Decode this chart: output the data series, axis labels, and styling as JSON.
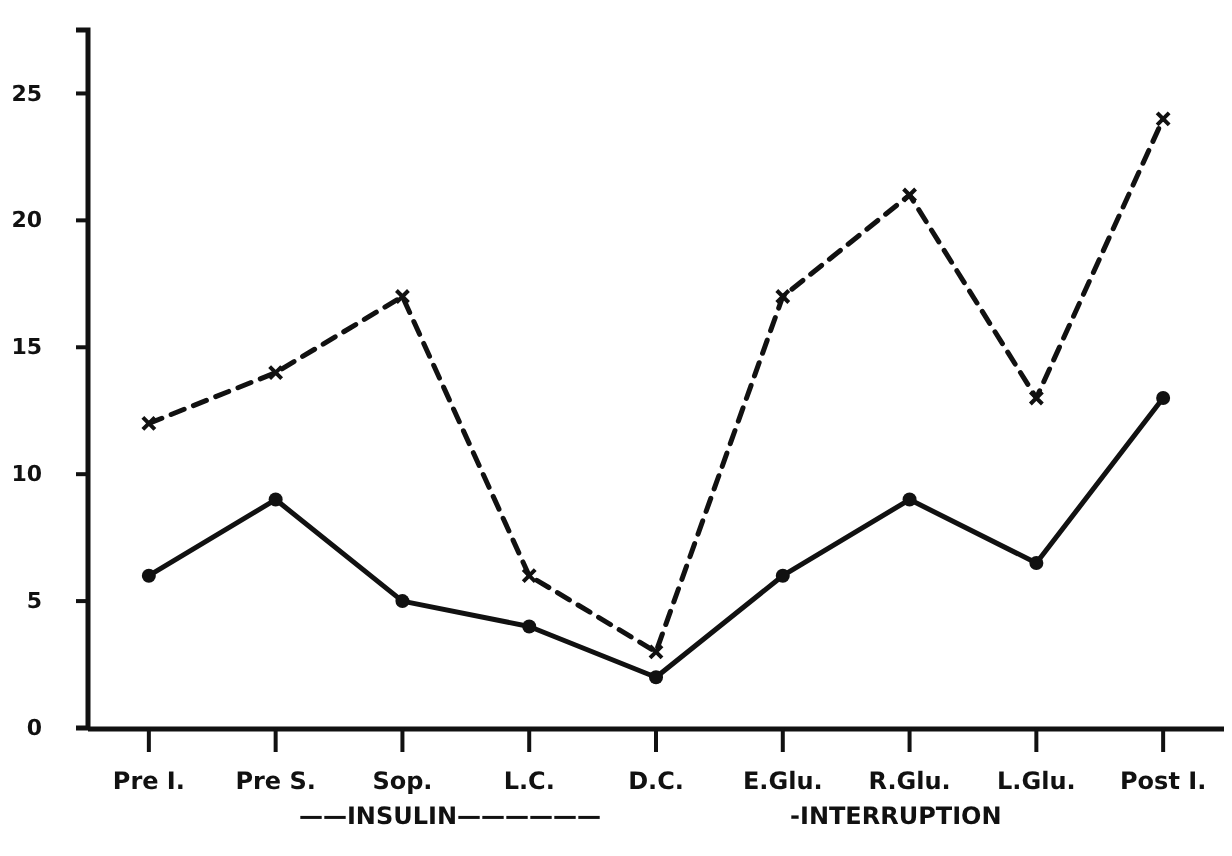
{
  "chart_data": {
    "type": "line",
    "categories": [
      "Pre I.",
      "Pre S.",
      "Sop.",
      "L.C.",
      "D.C.",
      "E.Glu.",
      "R.Glu.",
      "L.Glu.",
      "Post I."
    ],
    "series": [
      {
        "color": "#111111",
        "values": [
          12,
          14,
          17,
          6,
          3,
          17,
          21,
          13,
          24
        ],
        "marker": "cross",
        "line_style": "dashed"
      },
      {
        "color": "#111111",
        "values": [
          6,
          9,
          5,
          4,
          2,
          6,
          9,
          6.5,
          13
        ],
        "marker": "circle",
        "line_style": "solid"
      }
    ],
    "ylim": [
      0,
      27.5
    ],
    "yticks": [
      0,
      5,
      10,
      15,
      20,
      25
    ],
    "annotations": [
      "——INSULIN——————",
      "-INTERRUPTION"
    ]
  }
}
